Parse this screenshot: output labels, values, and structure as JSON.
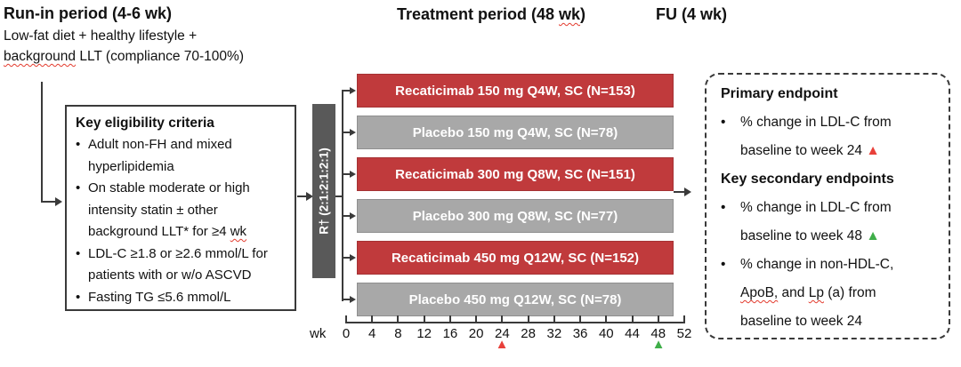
{
  "colors": {
    "red": "#c03a3c",
    "gray": "#a8a8a8",
    "dark_gray": "#595959",
    "tri_red": "#e8403a",
    "tri_green": "#3fae49"
  },
  "run_in": {
    "title": "Run-in period (4-6 wk)",
    "line1": "Low-fat diet + healthy lifestyle +",
    "line2_sq": "background",
    "line2_post": " LLT (compliance 70-100%)"
  },
  "headers": {
    "treatment_pre": "Treatment period (48 ",
    "treatment_sq": "wk",
    "treatment_post": ")",
    "fu": "FU (4 wk)"
  },
  "bullet": "•",
  "eligibility": {
    "title": "Key eligibility criteria",
    "item1": "Adult non-FH and mixed hyperlipidemia",
    "item2_pre": "On stable moderate or high intensity statin ± other background LLT* for ≥4 ",
    "item2_sq": "wk",
    "item3": "LDL-C ≥1.8 or ≥2.6 mmol/L for patients with or w/o ASCVD",
    "item4": "Fasting TG ≤5.6 mmol/L"
  },
  "randomization": {
    "label": "R† (2:1:2:1:2:1)"
  },
  "arms": [
    {
      "label": "Recaticimab 150 mg Q4W, SC (N=153)",
      "type": "red"
    },
    {
      "label": "Placebo 150 mg Q4W, SC (N=78)",
      "type": "gray"
    },
    {
      "label": "Recaticimab 300 mg Q8W, SC (N=151)",
      "type": "red"
    },
    {
      "label": "Placebo 300 mg Q8W, SC (N=77)",
      "type": "gray"
    },
    {
      "label": "Recaticimab 450 mg Q12W, SC (N=152)",
      "type": "red"
    },
    {
      "label": "Placebo 450 mg Q12W, SC (N=78)",
      "type": "gray"
    }
  ],
  "axis": {
    "unit": "wk",
    "ticks": [
      "0",
      "4",
      "8",
      "12",
      "16",
      "20",
      "24",
      "28",
      "32",
      "36",
      "40",
      "44",
      "48",
      "52"
    ],
    "marker_glyph": "▲",
    "marker_weeks": {
      "primary": "24",
      "secondary": "48"
    }
  },
  "endpoints": {
    "primary_title": "Primary endpoint",
    "p1_text": "% change in LDL-C from baseline to week 24 ",
    "secondary_title": "Key secondary endpoints",
    "s1_text": "% change in LDL-C from baseline to week 48 ",
    "s2_pre": "% change in non-HDL-C, ",
    "s2_sq1": "ApoB,",
    "s2_mid": " and ",
    "s2_sq2": "Lp",
    "s2_post": " (a) from baseline to week 24"
  }
}
